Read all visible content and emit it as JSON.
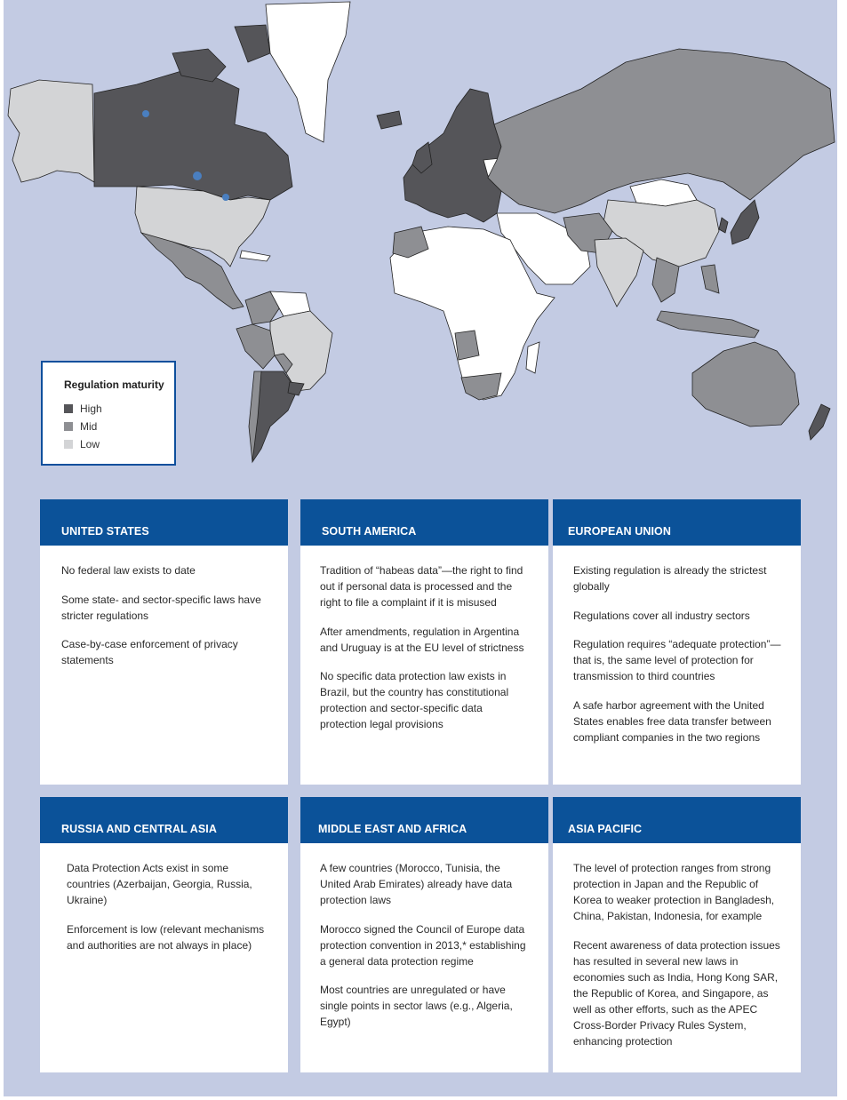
{
  "legend": {
    "title": "Regulation maturity",
    "items": [
      {
        "label": "High",
        "color": "#555559"
      },
      {
        "label": "Mid",
        "color": "#8e8f93"
      },
      {
        "label": "Low",
        "color": "#d3d4d6"
      }
    ]
  },
  "colors": {
    "background": "#c3cbe3",
    "header": "#0b5299",
    "unregulated": "#ffffff"
  },
  "regions": [
    {
      "title": "UNITED STATES",
      "points": [
        "No federal law exists to date",
        "Some state- and sector-specific laws have stricter regulations",
        "Case-by-case enforcement of privacy statements"
      ]
    },
    {
      "title": "SOUTH AMERICA",
      "points": [
        "Tradition of “habeas data”—the right to find out if personal data is processed and the right to file a complaint if it is misused",
        "After amendments, regulation in Argentina and Uruguay is at the EU level of strictness",
        "No specific data protection law exists in Brazil, but the country has constitutional protection and sector-specific data protection legal provisions"
      ]
    },
    {
      "title": "EUROPEAN UNION",
      "points": [
        "Existing regulation is already the strictest globally",
        "Regulations cover all industry sectors",
        "Regulation requires “adequate protection”—that is, the same level of protection for transmission to third countries",
        "A safe harbor agreement with the United States enables free data transfer between compliant companies in the two regions"
      ]
    },
    {
      "title": "RUSSIA AND CENTRAL ASIA",
      "points": [
        "Data Protection Acts exist in some countries (Azerbaijan, Georgia, Russia, Ukraine)",
        "Enforcement is low (relevant mechanisms and authorities are not always in place)"
      ]
    },
    {
      "title": "MIDDLE EAST AND AFRICA",
      "points": [
        "A few countries (Morocco, Tunisia, the United Arab Emirates) already have data protection laws",
        "Morocco signed the Council of Europe data protection convention in 2013,* establishing a general data protection regime",
        "Most countries are unregulated or have single points in sector laws (e.g., Algeria, Egypt)"
      ]
    },
    {
      "title": "ASIA PACIFIC",
      "points": [
        "The level of protection ranges from strong protection in Japan and the Republic of Korea to weaker protection in Bangladesh, China, Pakistan, Indonesia, for example",
        "Recent awareness of data protection issues has resulted in several new laws in economies such as India, Hong Kong SAR, the Republic of Korea, and Singapore, as well as other efforts, such as the APEC Cross-Border Privacy Rules System, enhancing protection"
      ]
    }
  ]
}
